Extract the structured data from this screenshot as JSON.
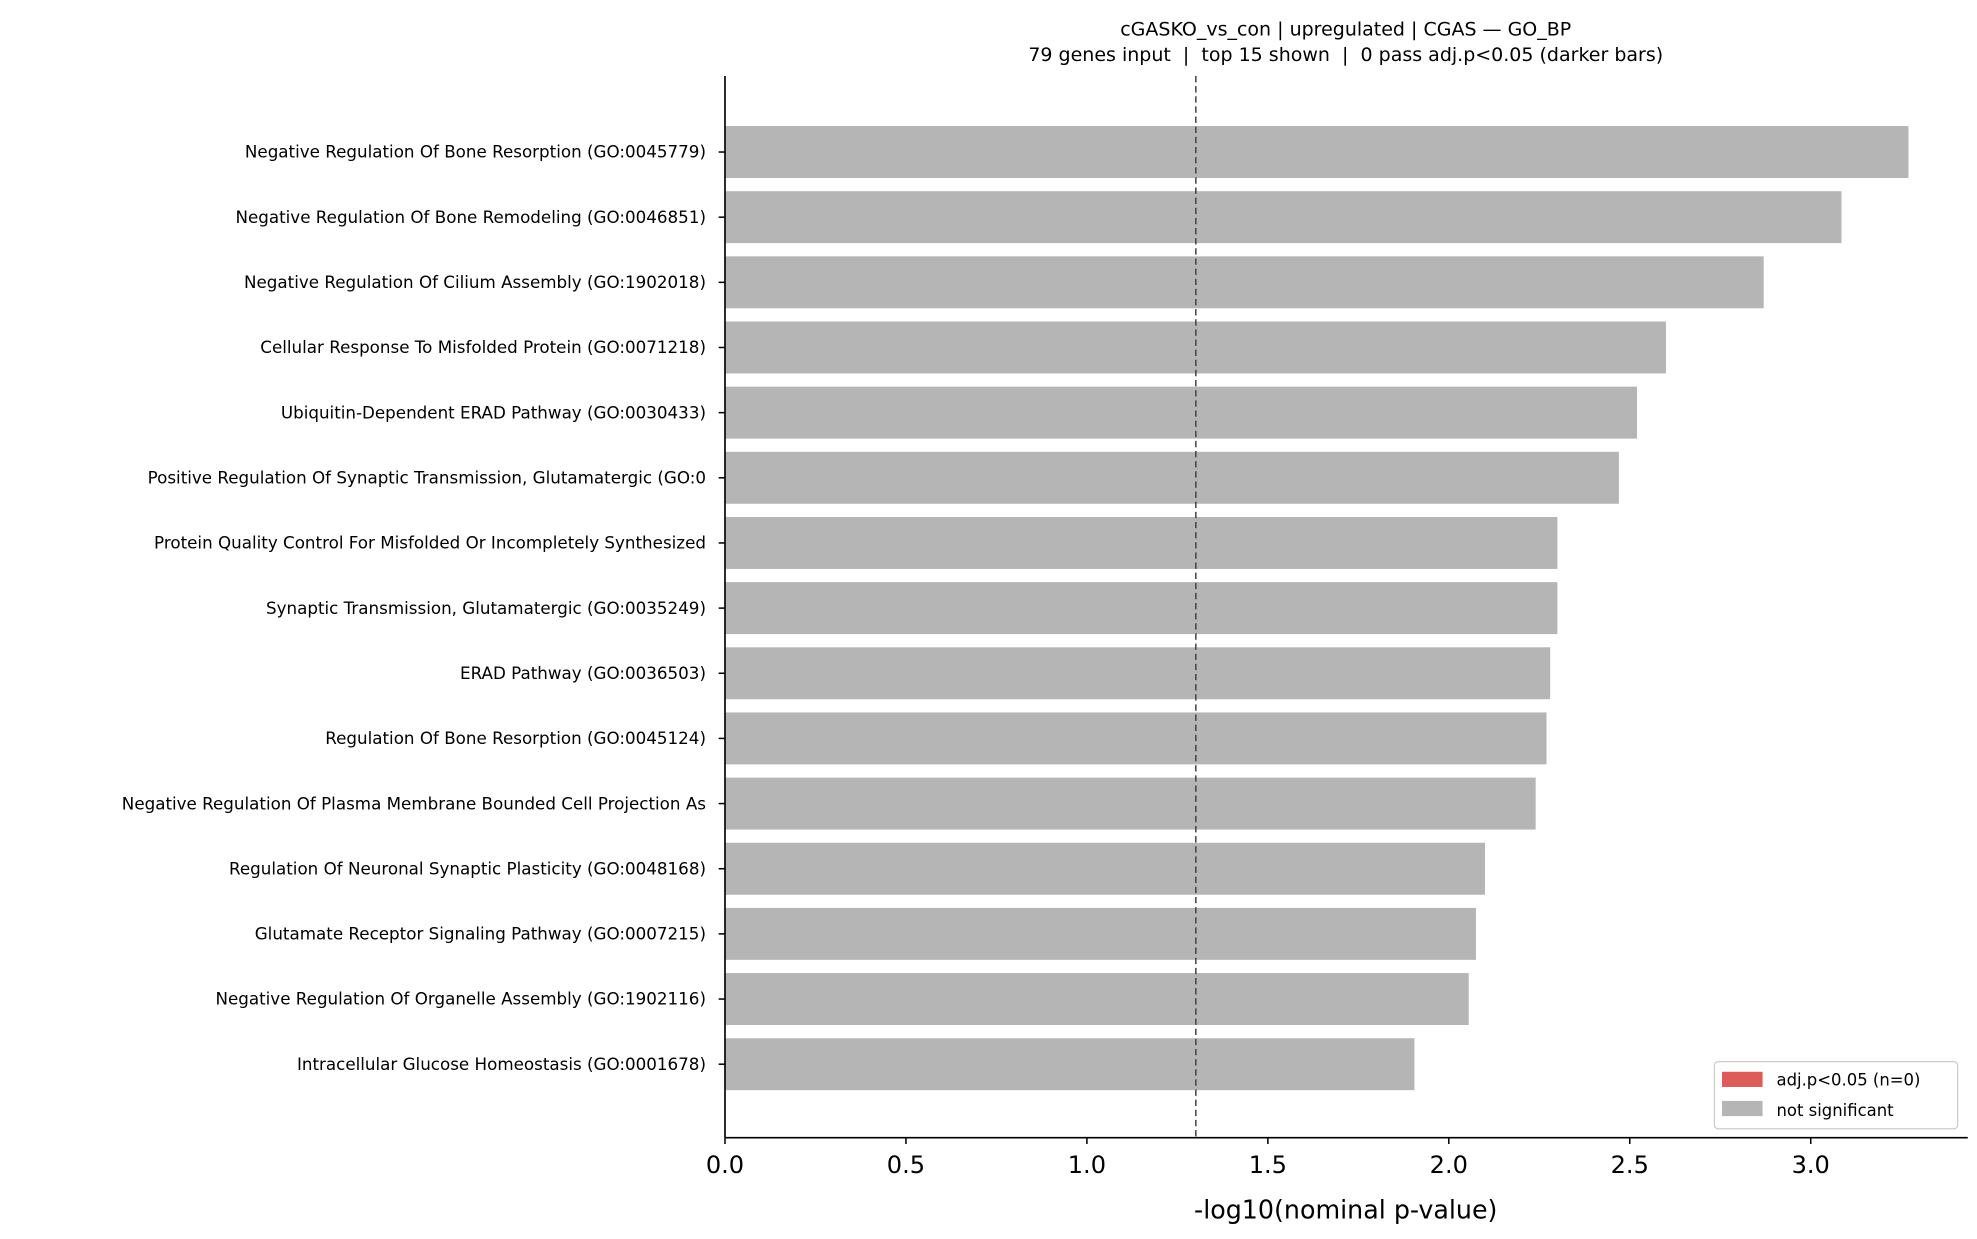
{
  "chart_data": {
    "type": "bar",
    "orientation": "horizontal",
    "title": "cGASKO_vs_con | upregulated | CGAS — GO_BP",
    "subtitle": "79 genes input  |  top 15 shown  |  0 pass adj.p<0.05 (darker bars)",
    "xlabel": "-log10(nominal p-value)",
    "ylabel": "",
    "xlim": [
      0,
      3.434
    ],
    "xticks": [
      "0.0",
      "0.5",
      "1.0",
      "1.5",
      "2.0",
      "2.5",
      "3.0"
    ],
    "threshold_line": 1.301,
    "categories": [
      "Negative Regulation Of Bone Resorption (GO:0045779)",
      "Negative Regulation Of Bone Remodeling (GO:0046851)",
      "Negative Regulation Of Cilium Assembly (GO:1902018)",
      "Cellular Response To Misfolded Protein (GO:0071218)",
      "Ubiquitin-Dependent ERAD Pathway (GO:0030433)",
      "Positive Regulation Of Synaptic Transmission, Glutamatergic (GO:0",
      "Protein Quality Control For Misfolded Or Incompletely Synthesized",
      "Synaptic Transmission, Glutamatergic (GO:0035249)",
      "ERAD Pathway (GO:0036503)",
      "Regulation Of Bone Resorption (GO:0045124)",
      "Negative Regulation Of Plasma Membrane Bounded Cell Projection As",
      "Regulation Of Neuronal Synaptic Plasticity (GO:0048168)",
      "Glutamate Receptor Signaling Pathway (GO:0007215)",
      "Negative Regulation Of Organelle Assembly (GO:1902116)",
      "Intracellular Glucose Homeostasis (GO:0001678)"
    ],
    "values": [
      3.27,
      3.085,
      2.87,
      2.6,
      2.52,
      2.47,
      2.3,
      2.3,
      2.28,
      2.27,
      2.24,
      2.1,
      2.075,
      2.055,
      1.905
    ],
    "significant": [
      false,
      false,
      false,
      false,
      false,
      false,
      false,
      false,
      false,
      false,
      false,
      false,
      false,
      false,
      false
    ],
    "legend": {
      "placement": "lower-right",
      "entries": [
        {
          "label": "adj.p<0.05 (n=0)",
          "color": "#d9534f"
        },
        {
          "label": "not significant",
          "color": "#b5b5b5"
        }
      ]
    },
    "colors": {
      "significant": "#d9534f",
      "not_significant": "#b5b5b5"
    }
  }
}
